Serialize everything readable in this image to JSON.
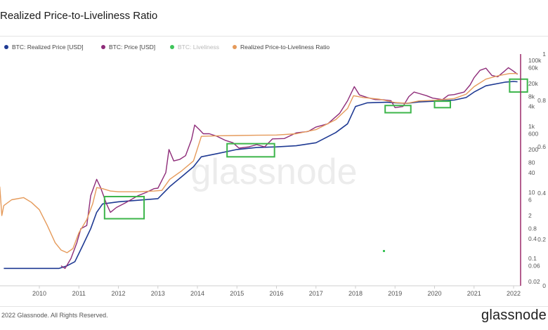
{
  "header": {
    "title": "Realized Price-to-Liveliness Ratio"
  },
  "footer": {
    "copyright": "2022 Glassnode. All Rights Reserved.",
    "logo": "glassnode"
  },
  "watermark": "glassnode",
  "colors": {
    "realized_price": "#1f3a93",
    "price": "#8e2c79",
    "liveliness": "#3ec45a",
    "rpl_ratio": "#e59a5a",
    "highlight_box": "#3cb54a",
    "axis_line": "#9c2a6a"
  },
  "chart_data": {
    "type": "line",
    "title": "Realized Price-to-Liveliness Ratio",
    "y_scale": "log",
    "legend_placement": "top-left",
    "legend": [
      {
        "label": "BTC: Realized Price [USD]",
        "color": "#1f3a93",
        "muted": false
      },
      {
        "label": "BTC: Price [USD]",
        "color": "#8e2c79",
        "muted": false
      },
      {
        "label": "BTC: Liveliness",
        "color": "#3ec45a",
        "muted": true
      },
      {
        "label": "Realized Price-to-Liveliness Ratio",
        "color": "#e59a5a",
        "muted": false
      }
    ],
    "x_ticks": [
      "2010",
      "2011",
      "2012",
      "2013",
      "2014",
      "2015",
      "2016",
      "2017",
      "2018",
      "2019",
      "2020",
      "2021",
      "2022"
    ],
    "y_ticks_left": [
      "100k",
      "60k",
      "20k",
      "8k",
      "4k",
      "1k",
      "600",
      "200",
      "80",
      "40",
      "10",
      "6",
      "2",
      "0.8",
      "0.4",
      "0.1",
      "0.06",
      "0.02"
    ],
    "y_ticks_right": [
      "1",
      "0.8",
      "0.6",
      "0.4",
      "0.2",
      "0"
    ],
    "series": [
      {
        "name": "BTC: Realized Price [USD]",
        "color": "#1f3a93",
        "x": [
          2009.1,
          2010.5,
          2010.7,
          2010.9,
          2011.1,
          2011.3,
          2011.45,
          2011.6,
          2012.0,
          2012.5,
          2013.0,
          2013.3,
          2013.6,
          2013.9,
          2014.1,
          2014.5,
          2015.0,
          2015.5,
          2016.0,
          2016.5,
          2017.0,
          2017.5,
          2017.8,
          2018.0,
          2018.3,
          2018.8,
          2019.0,
          2019.3,
          2019.6,
          2020.0,
          2020.5,
          2020.8,
          2021.0,
          2021.3,
          2021.8,
          2022.0,
          2022.1
        ],
        "y": [
          0.05,
          0.05,
          0.06,
          0.08,
          0.25,
          0.8,
          2.5,
          4.5,
          5.2,
          5.8,
          6.5,
          15,
          30,
          60,
          120,
          150,
          200,
          230,
          240,
          260,
          320,
          650,
          1200,
          4000,
          5200,
          5400,
          5200,
          5000,
          5500,
          5800,
          6300,
          7500,
          11000,
          17000,
          22000,
          23000,
          22500
        ]
      },
      {
        "name": "BTC: Price [USD]",
        "color": "#8e2c79",
        "x": [
          2010.55,
          2010.65,
          2010.8,
          2010.95,
          2011.05,
          2011.2,
          2011.3,
          2011.45,
          2011.55,
          2011.7,
          2011.8,
          2011.95,
          2012.2,
          2012.5,
          2012.7,
          2012.9,
          2013.0,
          2013.2,
          2013.28,
          2013.4,
          2013.55,
          2013.7,
          2013.85,
          2013.93,
          2014.05,
          2014.15,
          2014.3,
          2014.5,
          2014.7,
          2014.9,
          2015.05,
          2015.3,
          2015.5,
          2015.7,
          2015.9,
          2016.2,
          2016.5,
          2016.8,
          2017.0,
          2017.3,
          2017.6,
          2017.8,
          2017.97,
          2018.1,
          2018.3,
          2018.5,
          2018.7,
          2018.9,
          2019.0,
          2019.2,
          2019.35,
          2019.48,
          2019.6,
          2019.8,
          2019.95,
          2020.2,
          2020.35,
          2020.5,
          2020.75,
          2020.9,
          2021.0,
          2021.15,
          2021.3,
          2021.45,
          2021.6,
          2021.75,
          2021.87,
          2022.0,
          2022.1
        ],
        "y": [
          0.06,
          0.05,
          0.1,
          0.3,
          0.8,
          1.0,
          8,
          25,
          14,
          4.5,
          2.5,
          3.5,
          5,
          8,
          10,
          13,
          13.5,
          40,
          200,
          90,
          100,
          130,
          400,
          1100,
          800,
          600,
          600,
          500,
          380,
          320,
          220,
          240,
          280,
          240,
          420,
          430,
          640,
          700,
          960,
          1200,
          2500,
          6000,
          16000,
          9000,
          7500,
          6500,
          6400,
          6000,
          3700,
          4000,
          8000,
          11000,
          10000,
          8500,
          7200,
          6500,
          8800,
          9200,
          11000,
          18000,
          30000,
          50000,
          58000,
          35000,
          32000,
          45000,
          60000,
          47000,
          38000
        ]
      },
      {
        "name": "Realized Price-to-Liveliness Ratio",
        "color": "#e59a5a",
        "x": [
          2009.0,
          2009.05,
          2009.1,
          2009.3,
          2009.6,
          2009.8,
          2010.0,
          2010.2,
          2010.4,
          2010.55,
          2010.7,
          2010.85,
          2011.0,
          2011.2,
          2011.35,
          2011.45,
          2011.6,
          2011.8,
          2012.0,
          2012.5,
          2012.9,
          2013.1,
          2013.3,
          2013.6,
          2013.9,
          2014.1,
          2014.5,
          2015.0,
          2015.5,
          2016.0,
          2016.5,
          2017.0,
          2017.5,
          2017.8,
          2017.95,
          2018.2,
          2018.6,
          2019.0,
          2019.3,
          2019.6,
          2020.0,
          2020.5,
          2020.8,
          2021.0,
          2021.3,
          2021.6,
          2021.9,
          2022.1
        ],
        "y": [
          15,
          2,
          4,
          6,
          7,
          5,
          3,
          1,
          0.3,
          0.18,
          0.15,
          0.2,
          0.6,
          1.5,
          4.5,
          14,
          13,
          11,
          10.5,
          10.5,
          11,
          11.5,
          25,
          45,
          90,
          500,
          520,
          530,
          540,
          550,
          600,
          800,
          1600,
          3500,
          8500,
          7500,
          6700,
          5300,
          5000,
          5900,
          6200,
          7000,
          9500,
          16000,
          27000,
          34000,
          40000,
          40000
        ]
      }
    ],
    "highlight_boxes": [
      {
        "x": [
          2011.65,
          2012.65
        ],
        "y": [
          1.6,
          7.5
        ]
      },
      {
        "x": [
          2014.75,
          2015.95
        ],
        "y": [
          120,
          300
        ]
      },
      {
        "x": [
          2018.75,
          2019.4
        ],
        "y": [
          2600,
          4300
        ]
      },
      {
        "x": [
          2020.0,
          2020.4
        ],
        "y": [
          3700,
          5800
        ]
      },
      {
        "x": [
          2021.9,
          2022.35
        ],
        "y": [
          11000,
          27000
        ]
      }
    ]
  }
}
